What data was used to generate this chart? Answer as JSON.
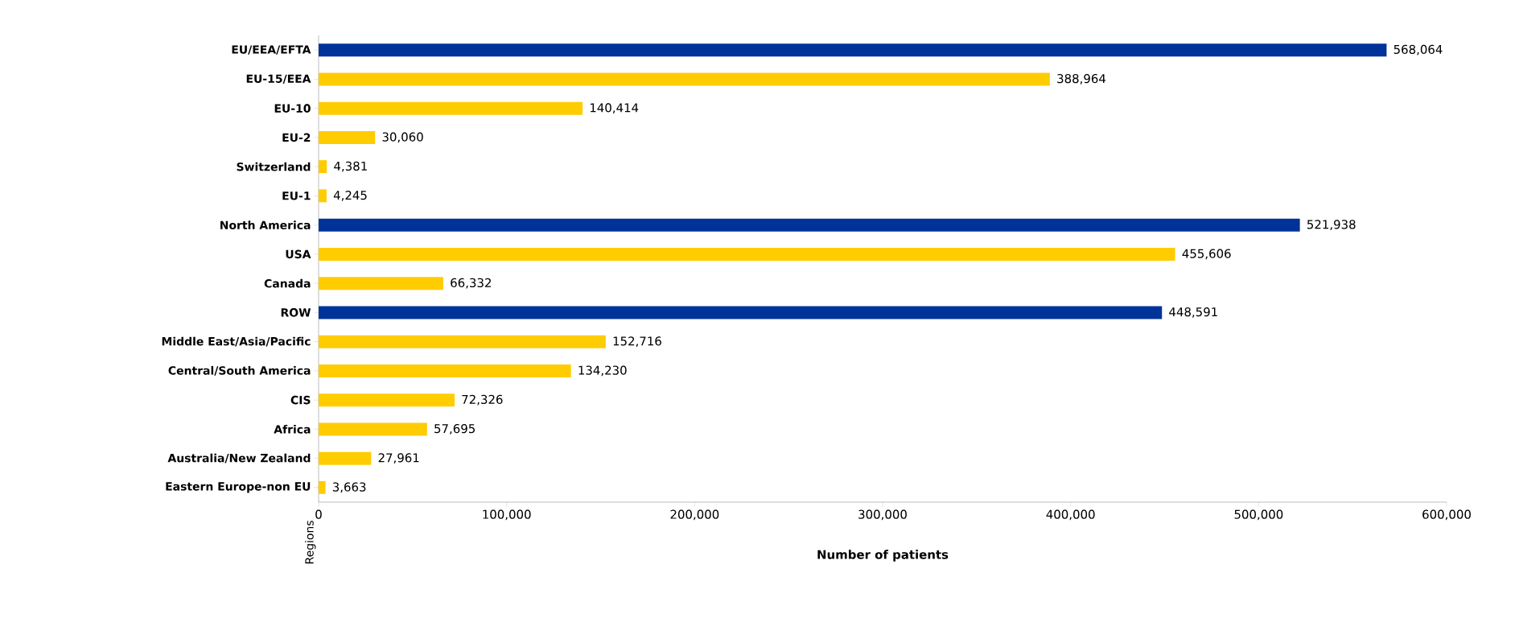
{
  "chart_data": {
    "type": "bar",
    "orientation": "horizontal",
    "xlabel": "Number of patients",
    "ylabel": "Regions",
    "categories": [
      "EU/EEA/EFTA",
      "EU-15/EEA",
      "EU-10",
      "EU-2",
      "Switzerland",
      "EU-1",
      "North America",
      "USA",
      "Canada",
      "ROW",
      "Middle East/Asia/Pacific",
      "Central/South America",
      "CIS",
      "Africa",
      "Australia/New Zealand",
      "Eastern Europe-non EU"
    ],
    "values": [
      568064,
      388964,
      140414,
      30060,
      4381,
      4245,
      521938,
      455606,
      66332,
      448591,
      152716,
      134230,
      72326,
      57695,
      27961,
      3663
    ],
    "value_labels": [
      "568,064",
      "388,964",
      "140,414",
      "30,060",
      "4,381",
      "4,245",
      "521,938",
      "455,606",
      "66,332",
      "448,591",
      "152,716",
      "134,230",
      "72,326",
      "57,695",
      "27,961",
      "3,663"
    ],
    "colors": [
      "#003399",
      "#ffcc00",
      "#ffcc00",
      "#ffcc00",
      "#ffcc00",
      "#ffcc00",
      "#003399",
      "#ffcc00",
      "#ffcc00",
      "#003399",
      "#ffcc00",
      "#ffcc00",
      "#ffcc00",
      "#ffcc00",
      "#ffcc00",
      "#ffcc00"
    ],
    "xlim": [
      0,
      600000
    ],
    "xticks": [
      0,
      {
        "value": 100000,
        "label": "100,000"
      },
      {
        "value": 200000,
        "label": "200,000"
      },
      {
        "value": 300000,
        "label": "300,000"
      },
      {
        "value": 400000,
        "label": "400,000"
      },
      {
        "value": 500000,
        "label": "500,000"
      },
      {
        "value": 600000,
        "label": "600,000"
      }
    ],
    "grid": false
  }
}
